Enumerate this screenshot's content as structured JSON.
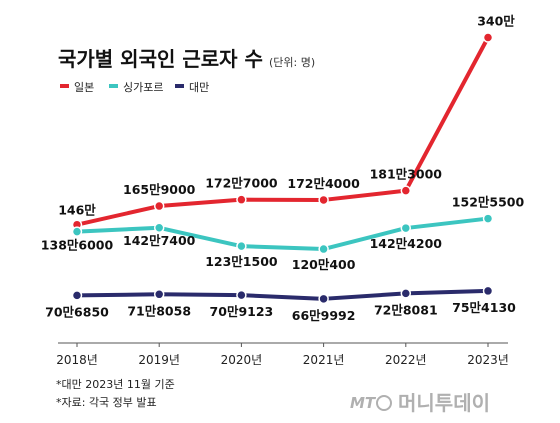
{
  "chart_data": {
    "type": "line",
    "title": "국가별 외국인 근로자 수",
    "unit_note": "(단위: 명)",
    "x": [
      "2018년",
      "2019년",
      "2020년",
      "2021년",
      "2022년",
      "2023년"
    ],
    "series": [
      {
        "name": "일본",
        "color": "#e3262f",
        "values": [
          1460000,
          1659000,
          1727000,
          1724000,
          1823000,
          3400000
        ],
        "labels": [
          "146만",
          "165만9000",
          "172만7000",
          "172만4000",
          "181만3000",
          "340만"
        ]
      },
      {
        "name": "싱가포르",
        "color": "#3cc5c0",
        "values": [
          1386000,
          1427400,
          1231500,
          1200400,
          1424200,
          1525500
        ],
        "labels": [
          "138만6000",
          "142만7400",
          "123만1500",
          "120만400",
          "142만4200",
          "152만5500"
        ]
      },
      {
        "name": "대만",
        "color": "#2a2b6b",
        "values": [
          706850,
          718058,
          709123,
          669992,
          728081,
          754130
        ],
        "labels": [
          "70만6850",
          "71만8058",
          "70만9123",
          "66만9992",
          "72만8081",
          "75만4130"
        ]
      }
    ],
    "legend_position": "top-left",
    "grid": false
  },
  "notes": [
    "*대만 2023년 11월 기준",
    "*자료: 각국 정부 발표"
  ],
  "brand": {
    "mt": "MT",
    "name": "머니투데이"
  }
}
